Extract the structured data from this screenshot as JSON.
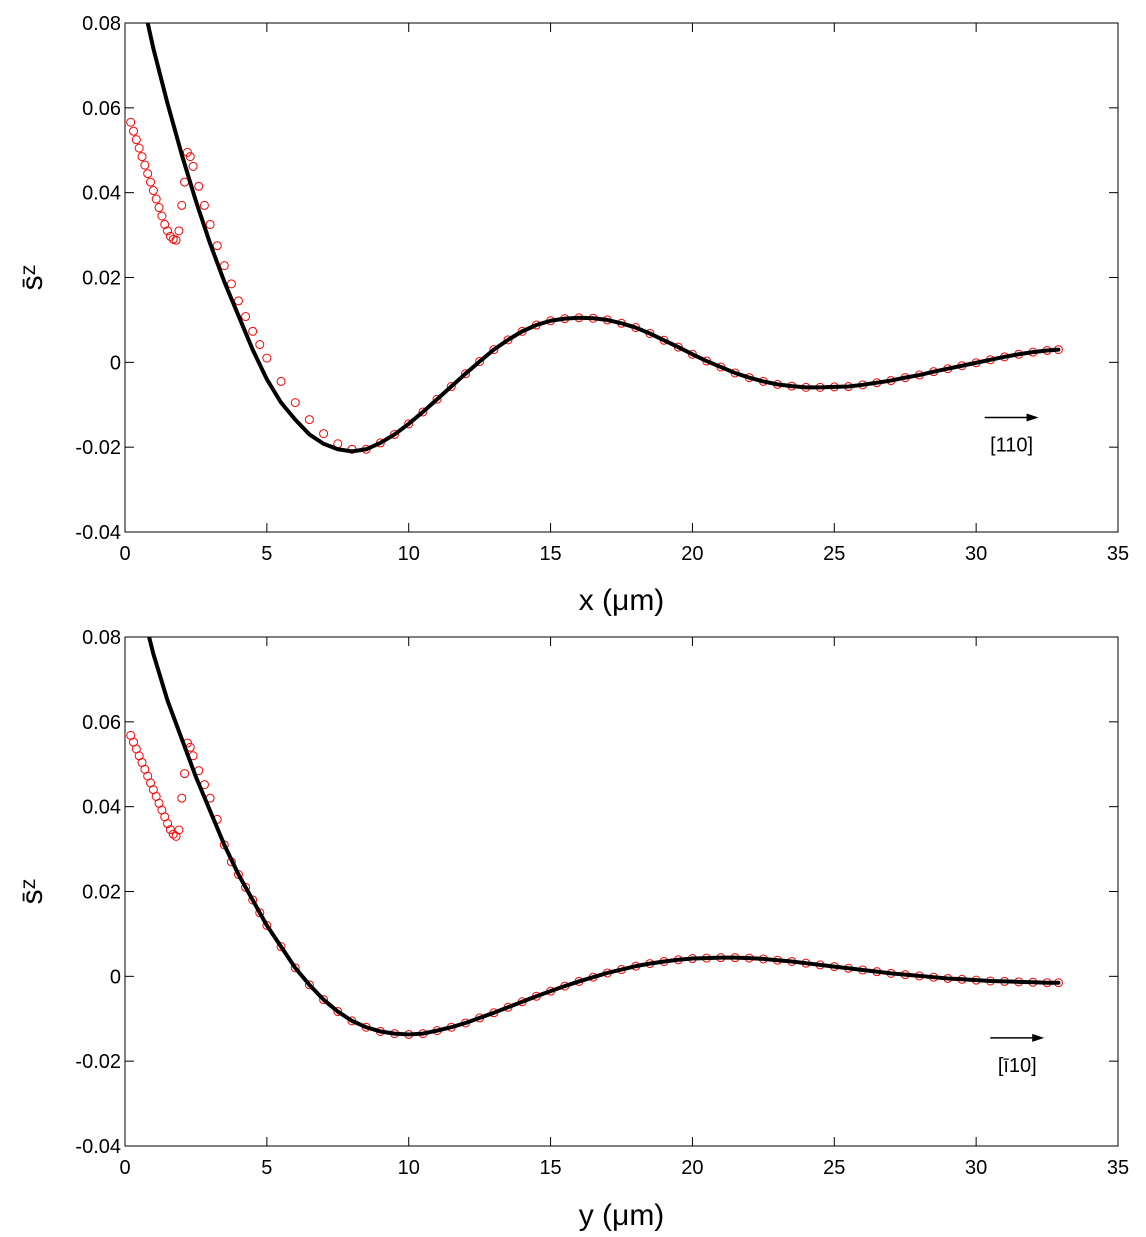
{
  "chart_data": [
    {
      "type": "line",
      "xlabel": "x (μm)",
      "ylabel": "s̄ᶻ",
      "xlim": [
        0,
        35
      ],
      "ylim": [
        -0.04,
        0.08
      ],
      "xticks": [
        "0",
        "5",
        "10",
        "15",
        "20",
        "25",
        "30",
        "35"
      ],
      "yticks": [
        "-0.04",
        "-0.02",
        "0",
        "0.02",
        "0.04",
        "0.06",
        "0.08"
      ],
      "grid": false,
      "annotation": {
        "label": "[110]",
        "arrow_from": [
          30.3,
          -0.013
        ],
        "arrow_to": [
          32.2,
          -0.013
        ]
      },
      "series": [
        {
          "style": "solid-line",
          "color": "#000000",
          "x": [
            0.8,
            1,
            1.5,
            2,
            2.5,
            3,
            3.5,
            4,
            4.5,
            5,
            5.5,
            6,
            6.5,
            7,
            7.5,
            8,
            8.5,
            9,
            9.5,
            10,
            10.5,
            11,
            11.5,
            12,
            12.5,
            13,
            13.5,
            14,
            14.5,
            15,
            15.5,
            16,
            16.5,
            17,
            17.5,
            18,
            18.5,
            19,
            19.5,
            20,
            20.5,
            21,
            21.5,
            22,
            22.5,
            23,
            23.5,
            24,
            24.5,
            25,
            25.5,
            26,
            26.5,
            27,
            27.5,
            28,
            28.5,
            29,
            29.5,
            30,
            30.5,
            31,
            31.5,
            32,
            32.5,
            32.9
          ],
          "y": [
            0.08,
            0.074,
            0.061,
            0.049,
            0.038,
            0.028,
            0.019,
            0.011,
            0.003,
            -0.004,
            -0.0095,
            -0.0135,
            -0.017,
            -0.0192,
            -0.0205,
            -0.021,
            -0.0205,
            -0.019,
            -0.017,
            -0.0145,
            -0.0117,
            -0.0087,
            -0.0057,
            -0.0027,
            0.0002,
            0.003,
            0.0053,
            0.0073,
            0.0088,
            0.0098,
            0.0103,
            0.0105,
            0.0104,
            0.01,
            0.0092,
            0.0082,
            0.0068,
            0.0052,
            0.0036,
            0.0019,
            0.0003,
            -0.0011,
            -0.0025,
            -0.0036,
            -0.0045,
            -0.0052,
            -0.0056,
            -0.0059,
            -0.0059,
            -0.0058,
            -0.0057,
            -0.0053,
            -0.0048,
            -0.0043,
            -0.0036,
            -0.003,
            -0.0022,
            -0.0015,
            -0.0008,
            -0.0001,
            0.0006,
            0.0013,
            0.0019,
            0.0024,
            0.0028,
            0.003
          ]
        },
        {
          "style": "open-circle-markers",
          "color": "#ff0000",
          "x": [
            0.2,
            0.3,
            0.4,
            0.5,
            0.6,
            0.7,
            0.8,
            0.9,
            1.0,
            1.1,
            1.2,
            1.3,
            1.4,
            1.5,
            1.6,
            1.7,
            1.8,
            1.9,
            2.0,
            2.1,
            2.2,
            2.3,
            2.4,
            2.6,
            2.8,
            3,
            3.25,
            3.5,
            3.75,
            4,
            4.25,
            4.5,
            4.75,
            5,
            5.5,
            6,
            6.5,
            7,
            7.5,
            8,
            8.5,
            9,
            9.5,
            10,
            10.5,
            11,
            11.5,
            12,
            12.5,
            13,
            13.5,
            14,
            14.5,
            15,
            15.5,
            16,
            16.5,
            17,
            17.5,
            18,
            18.5,
            19,
            19.5,
            20,
            20.5,
            21,
            21.5,
            22,
            22.5,
            23,
            23.5,
            24,
            24.5,
            25,
            25.5,
            26,
            26.5,
            27,
            27.5,
            28,
            28.5,
            29,
            29.5,
            30,
            30.5,
            31,
            31.5,
            32,
            32.5,
            32.9
          ],
          "y": [
            0.0566,
            0.0545,
            0.0525,
            0.0505,
            0.0485,
            0.0465,
            0.0445,
            0.0425,
            0.0405,
            0.0385,
            0.0365,
            0.0345,
            0.0325,
            0.031,
            0.0297,
            0.029,
            0.0288,
            0.031,
            0.037,
            0.0425,
            0.0495,
            0.0485,
            0.0462,
            0.0415,
            0.037,
            0.0325,
            0.0275,
            0.0228,
            0.0185,
            0.0145,
            0.0108,
            0.0073,
            0.0042,
            0.001,
            -0.0045,
            -0.0095,
            -0.0135,
            -0.0168,
            -0.0192,
            -0.0205,
            -0.0205,
            -0.019,
            -0.017,
            -0.0145,
            -0.0117,
            -0.0087,
            -0.0057,
            -0.0027,
            0.0002,
            0.003,
            0.0053,
            0.0073,
            0.0088,
            0.0098,
            0.0103,
            0.0105,
            0.0104,
            0.01,
            0.0092,
            0.0082,
            0.0068,
            0.0052,
            0.0036,
            0.0019,
            0.0003,
            -0.0011,
            -0.0025,
            -0.0036,
            -0.0045,
            -0.0052,
            -0.0056,
            -0.0059,
            -0.0059,
            -0.0058,
            -0.0057,
            -0.0053,
            -0.0048,
            -0.0043,
            -0.0036,
            -0.003,
            -0.0022,
            -0.0015,
            -0.0008,
            -0.0001,
            0.0006,
            0.0013,
            0.0019,
            0.0024,
            0.0028,
            0.003
          ]
        }
      ]
    },
    {
      "type": "line",
      "xlabel": "y (μm)",
      "ylabel": "s̄ᶻ",
      "xlim": [
        0,
        35
      ],
      "ylim": [
        -0.04,
        0.08
      ],
      "xticks": [
        "0",
        "5",
        "10",
        "15",
        "20",
        "25",
        "30",
        "35"
      ],
      "yticks": [
        "-0.04",
        "-0.02",
        "0",
        "0.02",
        "0.04",
        "0.06",
        "0.08"
      ],
      "grid": false,
      "annotation": {
        "label": "[ī10]",
        "arrow_from": [
          30.5,
          -0.0145
        ],
        "arrow_to": [
          32.4,
          -0.0145
        ]
      },
      "series": [
        {
          "style": "solid-line",
          "color": "#000000",
          "x": [
            0.85,
            1,
            1.5,
            2,
            2.5,
            3,
            3.5,
            4,
            4.5,
            5,
            5.5,
            6,
            6.5,
            7,
            7.5,
            8,
            8.5,
            9,
            9.5,
            10,
            10.5,
            11,
            11.5,
            12,
            12.5,
            13,
            13.5,
            14,
            14.5,
            15,
            15.5,
            16,
            16.5,
            17,
            17.5,
            18,
            18.5,
            19,
            19.5,
            20,
            20.5,
            21,
            21.5,
            22,
            22.5,
            23,
            23.5,
            24,
            24.5,
            25,
            25.5,
            26,
            26.5,
            27,
            27.5,
            28,
            28.5,
            29,
            29.5,
            30,
            30.5,
            31,
            31.5,
            32,
            32.5,
            32.9
          ],
          "y": [
            0.08,
            0.076,
            0.065,
            0.056,
            0.047,
            0.039,
            0.031,
            0.024,
            0.018,
            0.012,
            0.007,
            0.002,
            -0.002,
            -0.0055,
            -0.0083,
            -0.0105,
            -0.012,
            -0.013,
            -0.0135,
            -0.0137,
            -0.0135,
            -0.0128,
            -0.012,
            -0.011,
            -0.0098,
            -0.0086,
            -0.0073,
            -0.006,
            -0.0047,
            -0.0035,
            -0.0023,
            -0.0012,
            -0.0002,
            0.0008,
            0.0016,
            0.0024,
            0.003,
            0.0035,
            0.0039,
            0.0042,
            0.0043,
            0.0044,
            0.0044,
            0.0043,
            0.0041,
            0.0038,
            0.0035,
            0.0031,
            0.0027,
            0.0023,
            0.0019,
            0.0015,
            0.0011,
            0.0007,
            0.0004,
            0.0001,
            -0.0002,
            -0.0005,
            -0.0007,
            -0.0009,
            -0.0011,
            -0.0012,
            -0.0013,
            -0.0014,
            -0.0015,
            -0.0015
          ]
        },
        {
          "style": "open-circle-markers",
          "color": "#ff0000",
          "x": [
            0.2,
            0.3,
            0.4,
            0.5,
            0.6,
            0.7,
            0.8,
            0.9,
            1.0,
            1.1,
            1.2,
            1.3,
            1.4,
            1.5,
            1.6,
            1.7,
            1.8,
            1.9,
            2.0,
            2.1,
            2.2,
            2.3,
            2.4,
            2.6,
            2.8,
            3,
            3.25,
            3.5,
            3.75,
            4,
            4.25,
            4.5,
            4.75,
            5,
            5.5,
            6,
            6.5,
            7,
            7.5,
            8,
            8.5,
            9,
            9.5,
            10,
            10.5,
            11,
            11.5,
            12,
            12.5,
            13,
            13.5,
            14,
            14.5,
            15,
            15.5,
            16,
            16.5,
            17,
            17.5,
            18,
            18.5,
            19,
            19.5,
            20,
            20.5,
            21,
            21.5,
            22,
            22.5,
            23,
            23.5,
            24,
            24.5,
            25,
            25.5,
            26,
            26.5,
            27,
            27.5,
            28,
            28.5,
            29,
            29.5,
            30,
            30.5,
            31,
            31.5,
            32,
            32.5,
            32.9
          ],
          "y": [
            0.0568,
            0.0552,
            0.0536,
            0.052,
            0.0504,
            0.0488,
            0.0472,
            0.0456,
            0.044,
            0.0424,
            0.0408,
            0.0392,
            0.0376,
            0.036,
            0.0346,
            0.0335,
            0.033,
            0.0345,
            0.042,
            0.0478,
            0.055,
            0.054,
            0.052,
            0.0485,
            0.0452,
            0.042,
            0.037,
            0.031,
            0.027,
            0.024,
            0.021,
            0.018,
            0.015,
            0.012,
            0.007,
            0.002,
            -0.002,
            -0.0055,
            -0.0083,
            -0.0105,
            -0.012,
            -0.013,
            -0.0135,
            -0.0137,
            -0.0135,
            -0.0128,
            -0.012,
            -0.011,
            -0.0098,
            -0.0086,
            -0.0073,
            -0.006,
            -0.0047,
            -0.0035,
            -0.0023,
            -0.0012,
            -0.0002,
            0.0008,
            0.0016,
            0.0024,
            0.003,
            0.0035,
            0.0039,
            0.0042,
            0.0043,
            0.0044,
            0.0044,
            0.0043,
            0.0041,
            0.0038,
            0.0035,
            0.0031,
            0.0027,
            0.0023,
            0.0019,
            0.0015,
            0.0011,
            0.0007,
            0.0004,
            0.0001,
            -0.0002,
            -0.0005,
            -0.0007,
            -0.0009,
            -0.0011,
            -0.0012,
            -0.0013,
            -0.0014,
            -0.0015,
            -0.0015
          ]
        }
      ]
    }
  ]
}
